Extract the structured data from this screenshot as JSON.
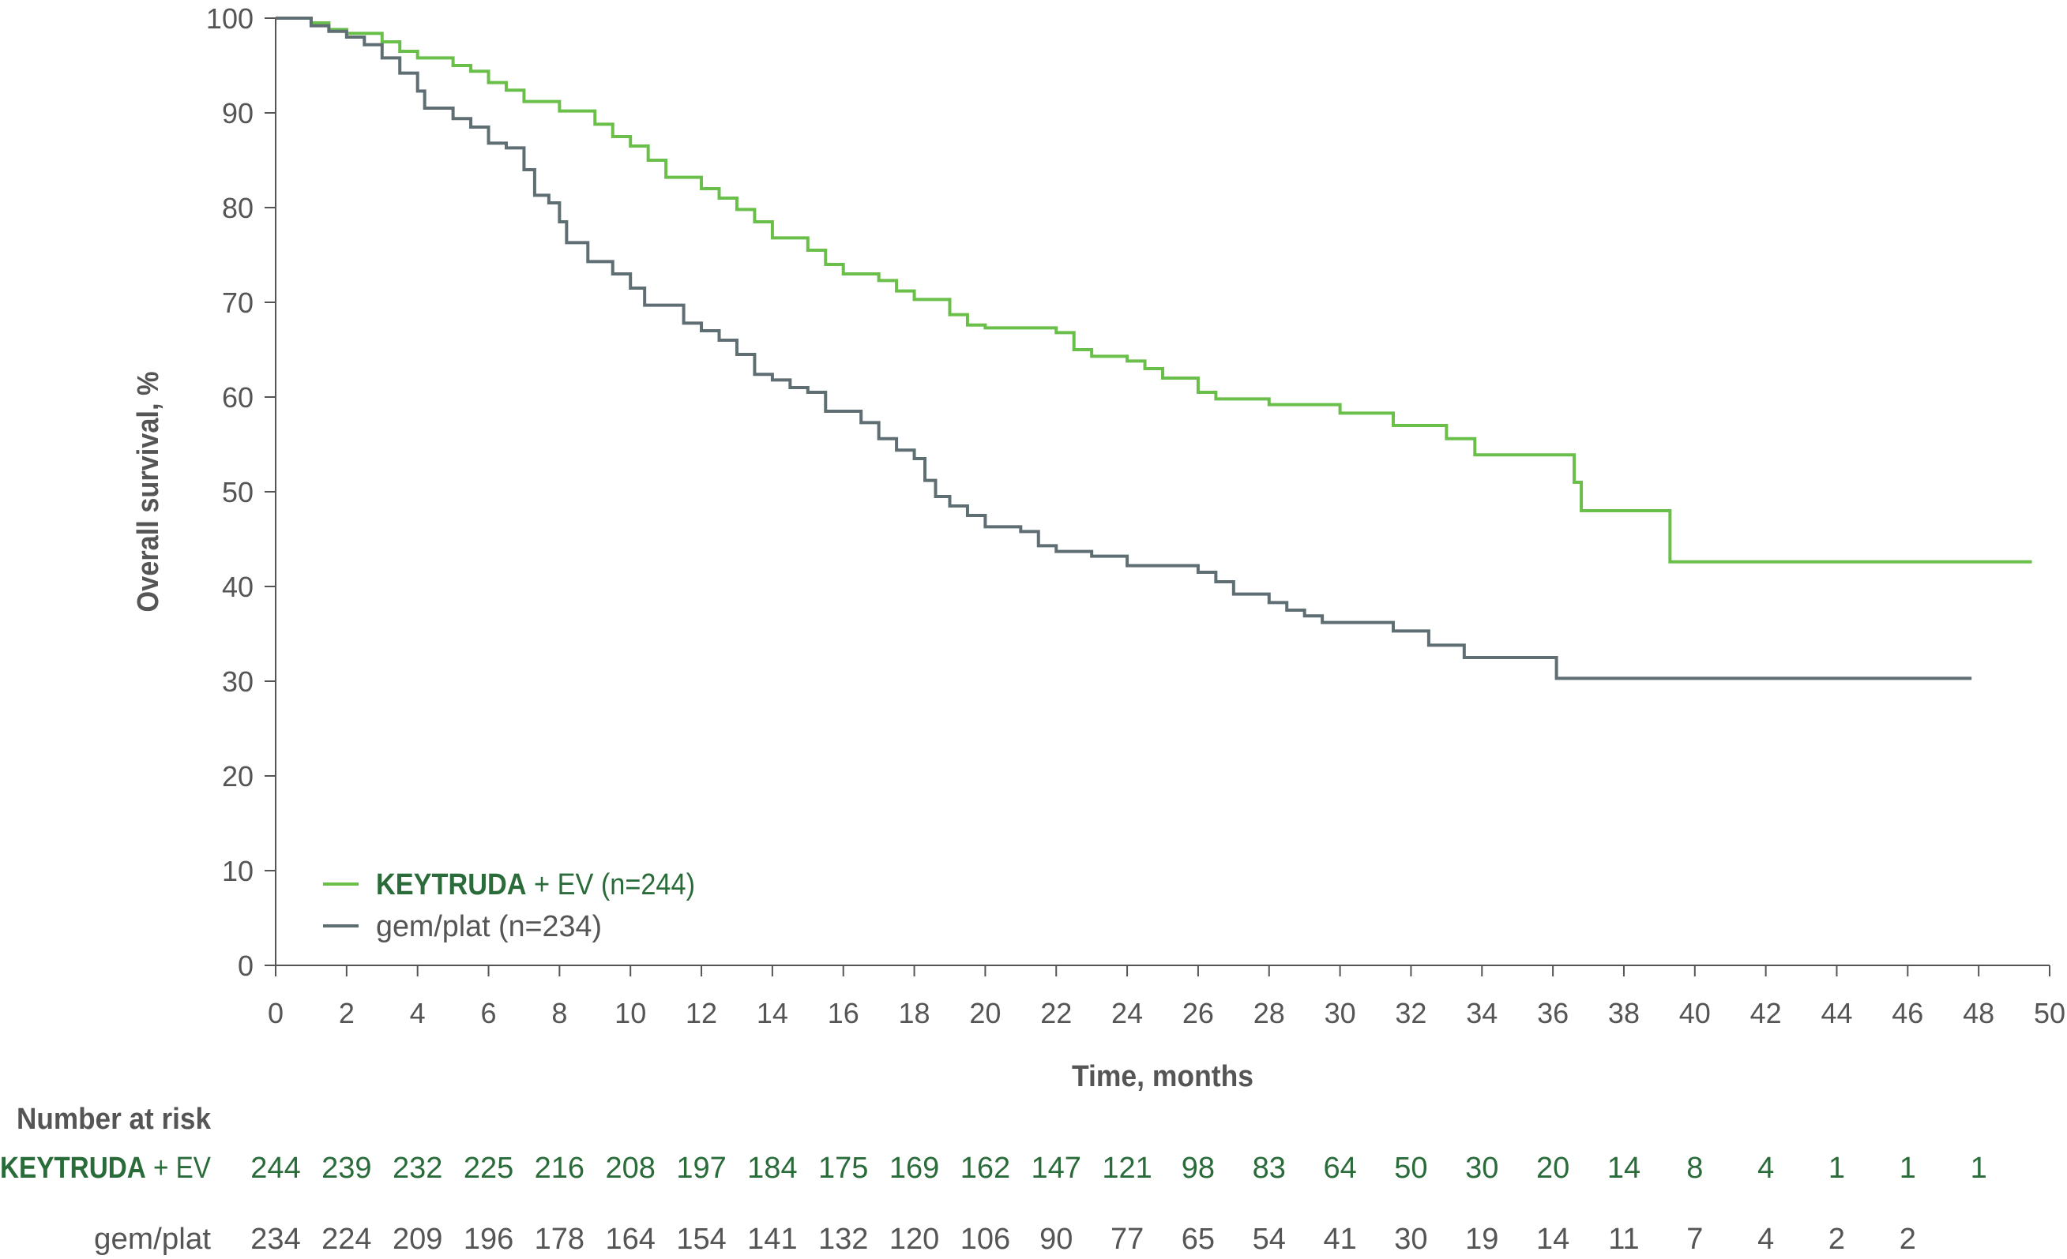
{
  "chart_data": {
    "type": "line",
    "subtype": "kaplan-meier step",
    "xlabel": "Time, months",
    "ylabel": "Overall survival, %",
    "xlim": [
      0,
      50
    ],
    "ylim": [
      0,
      100
    ],
    "xticks": [
      0,
      2,
      4,
      6,
      8,
      10,
      12,
      14,
      16,
      18,
      20,
      22,
      24,
      26,
      28,
      30,
      32,
      34,
      36,
      38,
      40,
      42,
      44,
      46,
      48,
      50
    ],
    "yticks": [
      0,
      10,
      20,
      30,
      40,
      50,
      60,
      70,
      80,
      90,
      100
    ],
    "grid": false,
    "legend_placement": "bottom-left",
    "series": [
      {
        "name_bold": "KEYTRUDA",
        "name_rest": " + EV (n=244)",
        "color": "#6abf4b",
        "points": [
          [
            0,
            100
          ],
          [
            1,
            99.5
          ],
          [
            1.5,
            98.8
          ],
          [
            2,
            98.4
          ],
          [
            3,
            97.5
          ],
          [
            3.5,
            96.5
          ],
          [
            4,
            95.8
          ],
          [
            5,
            95
          ],
          [
            5.5,
            94.4
          ],
          [
            6,
            93.2
          ],
          [
            6.5,
            92.4
          ],
          [
            7,
            91.2
          ],
          [
            8,
            90.2
          ],
          [
            9,
            88.8
          ],
          [
            9.5,
            87.5
          ],
          [
            10,
            86.5
          ],
          [
            10.5,
            85
          ],
          [
            11,
            83.2
          ],
          [
            12,
            82
          ],
          [
            12.5,
            81
          ],
          [
            13,
            79.8
          ],
          [
            13.5,
            78.5
          ],
          [
            14,
            76.8
          ],
          [
            15,
            75.5
          ],
          [
            15.5,
            74
          ],
          [
            16,
            73
          ],
          [
            17,
            72.3
          ],
          [
            17.5,
            71.2
          ],
          [
            18,
            70.3
          ],
          [
            19,
            68.7
          ],
          [
            19.5,
            67.6
          ],
          [
            20,
            67.3
          ],
          [
            22,
            66.8
          ],
          [
            22.5,
            65
          ],
          [
            23,
            64.3
          ],
          [
            24,
            63.8
          ],
          [
            24.5,
            63
          ],
          [
            25,
            62
          ],
          [
            26,
            60.5
          ],
          [
            26.5,
            59.8
          ],
          [
            28,
            59.2
          ],
          [
            30,
            58.3
          ],
          [
            31.5,
            57
          ],
          [
            33,
            55.6
          ],
          [
            33.8,
            53.9
          ],
          [
            36.5,
            53.9
          ],
          [
            36.6,
            51
          ],
          [
            36.8,
            48
          ],
          [
            39.3,
            48
          ],
          [
            39.3,
            42.6
          ],
          [
            49.5,
            42.6
          ]
        ]
      },
      {
        "name": "gem/plat (n=234)",
        "color": "#5e6e73",
        "points": [
          [
            0,
            100
          ],
          [
            1,
            99.2
          ],
          [
            1.5,
            98.6
          ],
          [
            2,
            98
          ],
          [
            2.5,
            97.2
          ],
          [
            3,
            95.8
          ],
          [
            3.5,
            94.2
          ],
          [
            4,
            92.3
          ],
          [
            4.2,
            90.5
          ],
          [
            5,
            89.4
          ],
          [
            5.5,
            88.5
          ],
          [
            6,
            86.8
          ],
          [
            6.5,
            86.3
          ],
          [
            7,
            84
          ],
          [
            7.3,
            81.3
          ],
          [
            7.7,
            80.5
          ],
          [
            8,
            78.5
          ],
          [
            8.2,
            76.3
          ],
          [
            8.8,
            74.3
          ],
          [
            9.5,
            73
          ],
          [
            10,
            71.5
          ],
          [
            10.4,
            69.7
          ],
          [
            11.5,
            67.8
          ],
          [
            12,
            67
          ],
          [
            12.5,
            66
          ],
          [
            13,
            64.5
          ],
          [
            13.5,
            62.4
          ],
          [
            14,
            61.8
          ],
          [
            14.5,
            61
          ],
          [
            15,
            60.5
          ],
          [
            15.5,
            58.5
          ],
          [
            16.5,
            57.3
          ],
          [
            17,
            55.6
          ],
          [
            17.5,
            54.4
          ],
          [
            18,
            53.5
          ],
          [
            18.3,
            51.2
          ],
          [
            18.6,
            49.5
          ],
          [
            19,
            48.5
          ],
          [
            19.5,
            47.5
          ],
          [
            20,
            46.3
          ],
          [
            21,
            45.8
          ],
          [
            21.5,
            44.3
          ],
          [
            22,
            43.7
          ],
          [
            23,
            43.2
          ],
          [
            24,
            42.2
          ],
          [
            26,
            41.5
          ],
          [
            26.5,
            40.5
          ],
          [
            27,
            39.2
          ],
          [
            28,
            38.3
          ],
          [
            28.5,
            37.5
          ],
          [
            29,
            36.9
          ],
          [
            29.5,
            36.2
          ],
          [
            31.5,
            35.3
          ],
          [
            32.5,
            33.8
          ],
          [
            33.5,
            32.5
          ],
          [
            36.1,
            30.3
          ],
          [
            47.8,
            30.3
          ]
        ]
      }
    ],
    "risk_table": {
      "title": "Number at risk",
      "rows": [
        {
          "label_bold": "KEYTRUDA",
          "label_rest": " + EV",
          "color": "#2a6b3a",
          "values": [
            244,
            239,
            232,
            225,
            216,
            208,
            197,
            184,
            175,
            169,
            162,
            147,
            121,
            98,
            83,
            64,
            50,
            30,
            20,
            14,
            8,
            4,
            1,
            1,
            1
          ]
        },
        {
          "label": "gem/plat",
          "color": "#555555",
          "values": [
            234,
            224,
            209,
            196,
            178,
            164,
            154,
            141,
            132,
            120,
            106,
            90,
            77,
            65,
            54,
            41,
            30,
            19,
            14,
            11,
            7,
            4,
            2,
            2
          ]
        }
      ]
    }
  }
}
